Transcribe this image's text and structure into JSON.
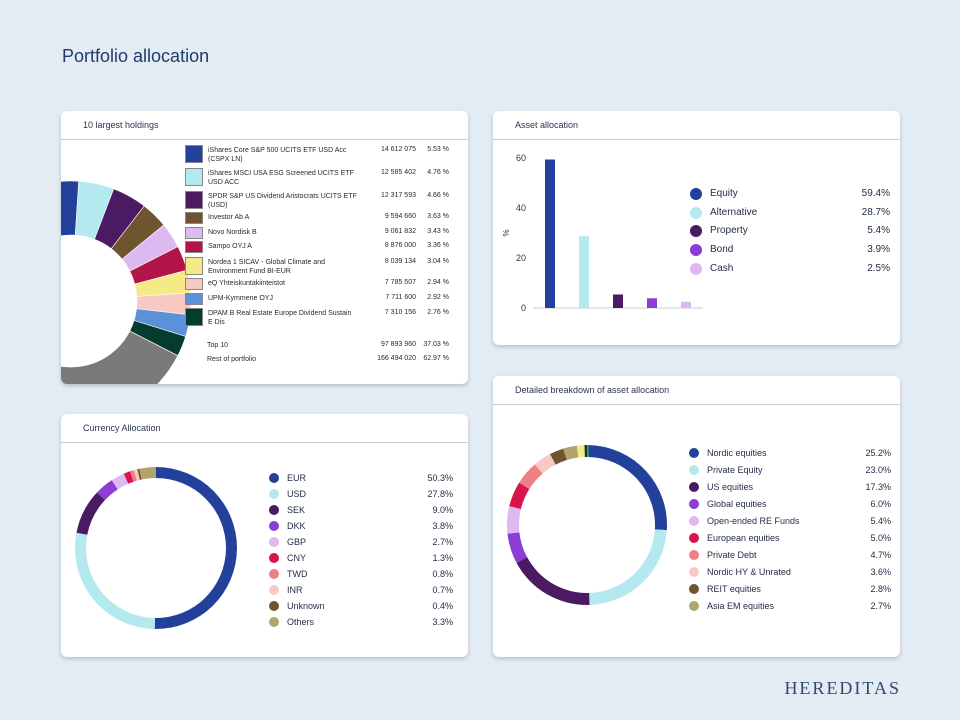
{
  "page": {
    "title": "Portfolio allocation",
    "brand": "HEREDITAS"
  },
  "colors": {
    "navy": "#23409a",
    "light_cyan": "#b4e9ef",
    "deep_purple": "#4a1a63",
    "violet": "#8b3ed6",
    "lavender": "#dcb9f0",
    "crimson": "#d7154a",
    "salmon": "#ee7f84",
    "peach": "#f7c9c2",
    "brown": "#6e5530",
    "olive_khaki": "#b0a56d",
    "grey": "#7a7a7a",
    "yellow": "#f4ea86",
    "blue": "#5a91d8",
    "dark_green": "#063b30"
  },
  "chart_data": [
    {
      "id": "holdings",
      "type": "pie",
      "title": "10 largest holdings",
      "items": [
        {
          "name": "iShares Core S&P 500 UCITS ETF USD Acc (CSPX LN)",
          "value": "14 612 075",
          "pct_label": "5.53 %",
          "pct": 5.53,
          "color": "#23409a"
        },
        {
          "name": "iShares MSCI USA ESG Screened UCITS ETF USD ACC",
          "value": "12 585 402",
          "pct_label": "4.76 %",
          "pct": 4.76,
          "color": "#b4e9ef"
        },
        {
          "name": "SPDR S&P US Dividend Aristocrats UCITS ETF (USD)",
          "value": "12 317 593",
          "pct_label": "4.66 %",
          "pct": 4.66,
          "color": "#4a1a63"
        },
        {
          "name": "Investor Ab A",
          "value": "9 594 660",
          "pct_label": "3.63 %",
          "pct": 3.63,
          "color": "#6e5530"
        },
        {
          "name": "Novo Nordisk B",
          "value": "9 061 832",
          "pct_label": "3.43 %",
          "pct": 3.43,
          "color": "#dcb9f0"
        },
        {
          "name": "Sampo OYJ A",
          "value": "8 876 000",
          "pct_label": "3.36 %",
          "pct": 3.36,
          "color": "#b3144a"
        },
        {
          "name": "Nordea 1 SICAV - Global Climate and Environment Fund BI-EUR",
          "value": "8 039 134",
          "pct_label": "3.04 %",
          "pct": 3.04,
          "color": "#f4ea86"
        },
        {
          "name": "eQ Yhteiskuntakiinteistot",
          "value": "7 785 507",
          "pct_label": "2.94 %",
          "pct": 2.94,
          "color": "#f7c9c2"
        },
        {
          "name": "UPM-Kymmene OYJ",
          "value": "7 711 600",
          "pct_label": "2.92 %",
          "pct": 2.92,
          "color": "#5a91d8"
        },
        {
          "name": "DPAM B Real Estate Europe Dividend Sustain E Dis",
          "value": "7 310 156",
          "pct_label": "2.76 %",
          "pct": 2.76,
          "color": "#063b30"
        }
      ],
      "summary": [
        {
          "name": "Top 10",
          "value": "97 893 960",
          "pct_label": "37.03 %"
        },
        {
          "name": "Rest of portfolio",
          "value": "166 494 020",
          "pct_label": "62.97 %",
          "pct": 62.97,
          "color": "#7a7a7a"
        }
      ]
    },
    {
      "id": "asset",
      "type": "bar",
      "title": "Asset allocation",
      "ylabel": "%",
      "ylim": [
        0,
        60
      ],
      "yticks": [
        "0",
        "20",
        "40",
        "60"
      ],
      "categories": [
        "Equity",
        "Alternative",
        "Property",
        "Bond",
        "Cash"
      ],
      "values": [
        59.4,
        28.7,
        5.4,
        3.9,
        2.5
      ],
      "value_labels": [
        "59.4%",
        "28.7%",
        "5.4%",
        "3.9%",
        "2.5%"
      ],
      "colors": [
        "#23409a",
        "#b4e9ef",
        "#4a1a63",
        "#8b3ed6",
        "#dcb9f0"
      ]
    },
    {
      "id": "currency",
      "type": "pie",
      "title": "Currency Allocation",
      "categories": [
        "EUR",
        "USD",
        "SEK",
        "DKK",
        "GBP",
        "CNY",
        "TWD",
        "INR",
        "Unknown",
        "Others"
      ],
      "values": [
        50.3,
        27.8,
        9.0,
        3.8,
        2.7,
        1.3,
        0.8,
        0.7,
        0.4,
        3.3
      ],
      "value_labels": [
        "50.3%",
        "27.8%",
        "9.0%",
        "3.8%",
        "2.7%",
        "1.3%",
        "0.8%",
        "0.7%",
        "0.4%",
        "3.3%"
      ],
      "colors": [
        "#23409a",
        "#b4e9ef",
        "#4a1a63",
        "#8b3ed6",
        "#dcb9f0",
        "#d7154a",
        "#ee7f84",
        "#f7c9c2",
        "#6e5530",
        "#b0a56d"
      ]
    },
    {
      "id": "detailed",
      "type": "pie",
      "title": "Detailed breakdown of asset allocation",
      "categories": [
        "Nordic equities",
        "Private Equity",
        "US equities",
        "Global equities",
        "Open-ended RE Funds",
        "European equities",
        "Private Debt",
        "Nordic HY & Unrated",
        "REIT equities",
        "Asia EM equities"
      ],
      "values": [
        25.2,
        23.0,
        17.3,
        6.0,
        5.4,
        5.0,
        4.7,
        3.6,
        2.8,
        2.7
      ],
      "value_labels": [
        "25.2%",
        "23.0%",
        "17.3%",
        "6.0%",
        "5.4%",
        "5.0%",
        "4.7%",
        "3.6%",
        "2.8%",
        "2.7%"
      ],
      "colors": [
        "#23409a",
        "#b4e9ef",
        "#4a1a63",
        "#8b3ed6",
        "#dcb9f0",
        "#d7154a",
        "#ee7f84",
        "#f7c9c2",
        "#6e5530",
        "#b0a56d"
      ],
      "extra_colors": [
        "#f4ea86",
        "#063b30",
        "#2aa84a"
      ]
    }
  ]
}
